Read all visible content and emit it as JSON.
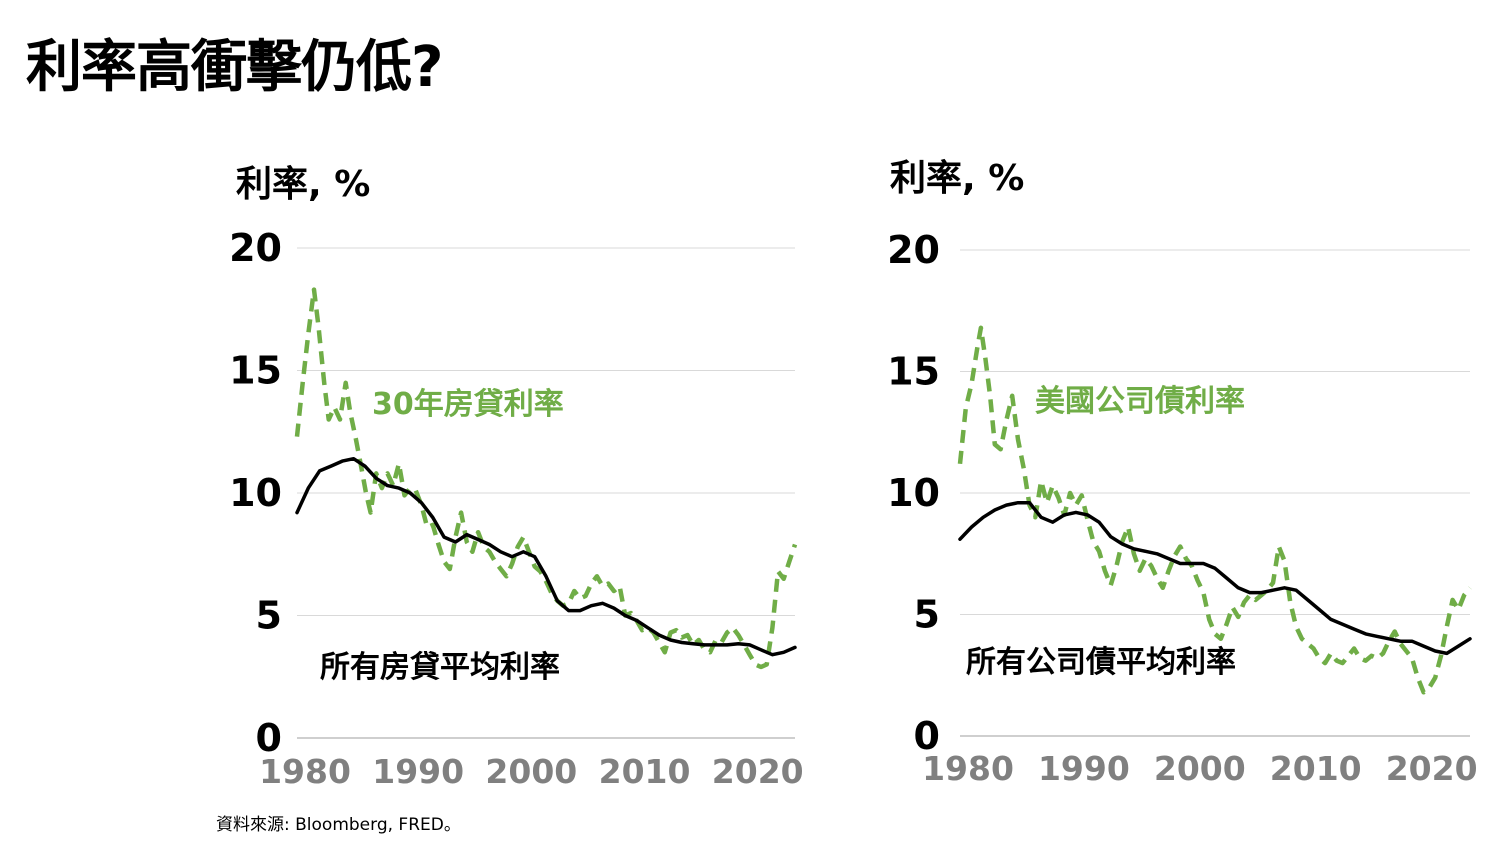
{
  "title": "利率高衝擊仍低?",
  "source": "資料來源: Bloomberg, FRED。",
  "colors": {
    "green": "#70AD47",
    "black": "#000000",
    "grid": "#D9D9D9",
    "axis_text": "#808080"
  },
  "chart_data": [
    {
      "type": "line",
      "unit_label": "利率, %",
      "ylim": [
        0,
        20
      ],
      "y_ticks": [
        "0",
        "5",
        "10",
        "15",
        "20"
      ],
      "xlim": [
        1980,
        2024
      ],
      "x_ticks": [
        "1980",
        "1990",
        "2000",
        "2010",
        "2020"
      ],
      "grid": true,
      "series": [
        {
          "name": "30年房貸利率",
          "style": "dashed",
          "color": "#70AD47",
          "x": [
            1980,
            1980.5,
            1981,
            1981.5,
            1981.9,
            1982.4,
            1982.8,
            1983.3,
            1983.8,
            1984.3,
            1984.7,
            1985.2,
            1985.7,
            1986.1,
            1986.5,
            1987.0,
            1987.5,
            1988.0,
            1988.5,
            1989.0,
            1989.5,
            1990.0,
            1990.5,
            1991.0,
            1991.5,
            1992.0,
            1992.5,
            1993.0,
            1993.5,
            1994.0,
            1994.5,
            1995.0,
            1995.5,
            1996.0,
            1996.5,
            1997.0,
            1997.5,
            1998.0,
            1998.5,
            1999.0,
            1999.5,
            2000.0,
            2000.5,
            2001.0,
            2001.5,
            2002.0,
            2002.5,
            2003.0,
            2003.5,
            2004.0,
            2004.5,
            2005.0,
            2005.5,
            2006.0,
            2006.5,
            2007.0,
            2007.5,
            2008.0,
            2008.5,
            2009.0,
            2009.5,
            2010.0,
            2010.5,
            2011.0,
            2011.5,
            2012.0,
            2012.5,
            2013.0,
            2013.5,
            2014.0,
            2014.5,
            2015.0,
            2015.5,
            2016.0,
            2016.5,
            2017.0,
            2017.5,
            2018.0,
            2018.5,
            2019.0,
            2019.5,
            2020.0,
            2020.5,
            2021.0,
            2021.5,
            2022.0,
            2022.5,
            2023.0,
            2023.5,
            2024.0
          ],
          "y": [
            12.3,
            14.5,
            16.5,
            18.3,
            16.8,
            14.5,
            13.0,
            13.5,
            13.0,
            14.5,
            13.3,
            12.2,
            11.0,
            10.0,
            9.2,
            10.8,
            10.2,
            10.8,
            10.3,
            11.2,
            9.9,
            10.2,
            10.1,
            9.5,
            8.6,
            8.7,
            7.9,
            7.2,
            6.9,
            8.2,
            9.2,
            8.0,
            7.6,
            8.4,
            7.8,
            7.6,
            7.2,
            6.9,
            6.6,
            7.1,
            7.8,
            8.2,
            7.6,
            7.0,
            6.8,
            6.4,
            5.9,
            5.6,
            5.4,
            5.5,
            6.0,
            5.7,
            5.8,
            6.3,
            6.6,
            6.2,
            6.3,
            6.0,
            6.2,
            5.0,
            5.1,
            4.8,
            4.4,
            4.5,
            4.3,
            3.9,
            3.5,
            4.3,
            4.4,
            4.1,
            4.2,
            3.8,
            4.0,
            3.6,
            3.5,
            4.0,
            3.9,
            4.3,
            4.5,
            4.2,
            3.8,
            3.4,
            3.0,
            2.9,
            3.0,
            4.5,
            6.8,
            6.5,
            7.2,
            7.9
          ]
        },
        {
          "name": "所有房貸平均利率",
          "style": "solid",
          "color": "#000000",
          "x": [
            1980,
            1981,
            1982,
            1983,
            1984,
            1985,
            1986,
            1987,
            1988,
            1989,
            1990,
            1991,
            1992,
            1993,
            1994,
            1995,
            1996,
            1997,
            1998,
            1999,
            2000,
            2001,
            2002,
            2003,
            2004,
            2005,
            2006,
            2007,
            2008,
            2009,
            2010,
            2011,
            2012,
            2013,
            2014,
            2015,
            2016,
            2017,
            2018,
            2019,
            2020,
            2021,
            2022,
            2023,
            2024
          ],
          "y": [
            9.2,
            10.2,
            10.9,
            11.1,
            11.3,
            11.4,
            11.1,
            10.6,
            10.3,
            10.2,
            10.0,
            9.6,
            9.0,
            8.2,
            8.0,
            8.3,
            8.1,
            7.9,
            7.6,
            7.4,
            7.6,
            7.4,
            6.6,
            5.6,
            5.2,
            5.2,
            5.4,
            5.5,
            5.3,
            5.0,
            4.8,
            4.5,
            4.2,
            4.0,
            3.9,
            3.85,
            3.8,
            3.8,
            3.8,
            3.85,
            3.8,
            3.6,
            3.4,
            3.5,
            3.7
          ]
        }
      ],
      "annotations": [
        "30年房貸利率",
        "所有房貸平均利率"
      ]
    },
    {
      "type": "line",
      "unit_label": "利率, %",
      "ylim": [
        0,
        20
      ],
      "y_ticks": [
        "0",
        "5",
        "10",
        "15",
        "20"
      ],
      "xlim": [
        1980,
        2024
      ],
      "x_ticks": [
        "1980",
        "1990",
        "2000",
        "2010",
        "2020"
      ],
      "grid": true,
      "series": [
        {
          "name": "美國公司債利率",
          "style": "dashed",
          "color": "#70AD47",
          "x": [
            1980,
            1980.5,
            1981,
            1981.5,
            1981.8,
            1982.2,
            1982.6,
            1983.0,
            1983.5,
            1984.0,
            1984.5,
            1985.0,
            1985.5,
            1986.0,
            1986.5,
            1987.0,
            1987.5,
            1988.0,
            1988.5,
            1989.0,
            1989.5,
            1990.0,
            1990.5,
            1991.0,
            1991.5,
            1992.0,
            1992.5,
            1993.0,
            1993.5,
            1994.0,
            1994.5,
            1995.0,
            1995.5,
            1996.0,
            1996.5,
            1997.0,
            1997.5,
            1998.0,
            1998.5,
            1999.0,
            1999.5,
            2000.0,
            2000.5,
            2001.0,
            2001.5,
            2002.0,
            2002.5,
            2003.0,
            2003.5,
            2004.0,
            2004.5,
            2005.0,
            2005.5,
            2006.0,
            2006.5,
            2007.0,
            2007.5,
            2008.0,
            2008.5,
            2009.0,
            2009.5,
            2010.0,
            2010.5,
            2011.0,
            2011.5,
            2012.0,
            2012.5,
            2013.0,
            2013.5,
            2014.0,
            2014.5,
            2015.0,
            2015.5,
            2016.0,
            2016.5,
            2017.0,
            2017.5,
            2018.0,
            2018.5,
            2019.0,
            2019.5,
            2020.0,
            2020.5,
            2021.0,
            2021.5,
            2022.0,
            2022.5,
            2023.0,
            2023.5,
            2024.0
          ],
          "y": [
            11.2,
            13.5,
            14.5,
            16.0,
            16.8,
            15.5,
            14.0,
            12.0,
            11.8,
            13.0,
            14.0,
            12.2,
            11.0,
            9.5,
            9.0,
            10.5,
            9.6,
            10.3,
            9.8,
            9.1,
            10.0,
            9.5,
            9.9,
            8.9,
            8.0,
            7.6,
            6.8,
            6.2,
            7.0,
            8.0,
            8.6,
            7.5,
            6.8,
            7.3,
            7.0,
            6.5,
            6.1,
            6.8,
            7.4,
            7.8,
            7.3,
            7.0,
            6.4,
            5.9,
            4.8,
            4.2,
            4.0,
            4.6,
            5.3,
            4.9,
            5.5,
            5.8,
            5.6,
            5.8,
            6.0,
            6.3,
            7.8,
            7.2,
            5.5,
            4.5,
            4.0,
            3.8,
            3.6,
            3.2,
            3.0,
            3.4,
            3.1,
            3.0,
            3.3,
            3.6,
            3.2,
            3.1,
            3.3,
            3.2,
            3.4,
            3.9,
            4.3,
            3.8,
            3.5,
            3.2,
            2.4,
            1.8,
            2.0,
            2.4,
            3.3,
            4.5,
            5.6,
            5.2,
            5.8,
            6.1
          ]
        },
        {
          "name": "所有公司債平均利率",
          "style": "solid",
          "color": "#000000",
          "x": [
            1980,
            1981,
            1982,
            1983,
            1984,
            1985,
            1986,
            1987,
            1988,
            1989,
            1990,
            1991,
            1992,
            1993,
            1994,
            1995,
            1996,
            1997,
            1998,
            1999,
            2000,
            2001,
            2002,
            2003,
            2004,
            2005,
            2006,
            2007,
            2008,
            2009,
            2010,
            2011,
            2012,
            2013,
            2014,
            2015,
            2016,
            2017,
            2018,
            2019,
            2020,
            2021,
            2022,
            2023,
            2024
          ],
          "y": [
            8.1,
            8.6,
            9.0,
            9.3,
            9.5,
            9.6,
            9.6,
            9.0,
            8.8,
            9.1,
            9.2,
            9.1,
            8.8,
            8.2,
            7.9,
            7.7,
            7.6,
            7.5,
            7.3,
            7.1,
            7.1,
            7.1,
            6.9,
            6.5,
            6.1,
            5.9,
            5.9,
            6.0,
            6.1,
            6.0,
            5.6,
            5.2,
            4.8,
            4.6,
            4.4,
            4.2,
            4.1,
            4.0,
            3.9,
            3.9,
            3.7,
            3.5,
            3.4,
            3.7,
            4.0
          ]
        }
      ],
      "annotations": [
        "美國公司債利率",
        "所有公司債平均利率"
      ]
    }
  ]
}
